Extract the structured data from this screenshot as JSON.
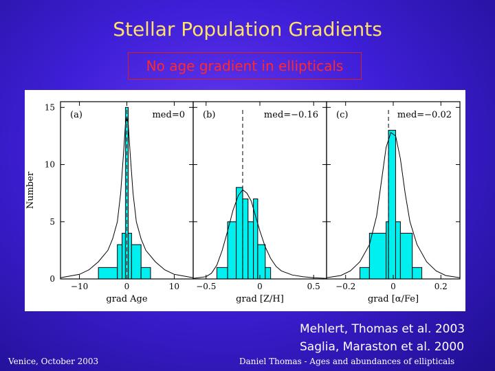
{
  "slide": {
    "title": "Stellar Population Gradients",
    "subtitle": "No age gradient in ellipticals",
    "references": [
      "Mehlert, Thomas et al. 2003",
      "Saglia, Maraston et al. 2000"
    ],
    "footer_left": "Venice, October 2003",
    "footer_center": "Daniel Thomas - Ages and abundances of ellipticals"
  },
  "colors": {
    "bars": "#00f0f0",
    "title": "#ffe06a",
    "subtitle": "#ff2a2a"
  },
  "chart_data": [
    {
      "type": "bar",
      "panel_label": "(a)",
      "annotation": "med=0",
      "xlabel": "grad Age",
      "ylabel": "Number",
      "xlim": [
        -14,
        14
      ],
      "ylim": [
        0,
        15.5
      ],
      "xticks": [
        -10,
        0,
        10
      ],
      "xtick_labels": [
        "−10",
        "0",
        "10"
      ],
      "yticks": [
        0,
        5,
        10,
        15
      ],
      "median": 0,
      "bins": [
        {
          "x0": -6,
          "x1": -2,
          "value": 1
        },
        {
          "x0": -2,
          "x1": -1,
          "value": 3
        },
        {
          "x0": -1,
          "x1": -0.3,
          "value": 4
        },
        {
          "x0": -0.3,
          "x1": 0.3,
          "value": 15
        },
        {
          "x0": 0.3,
          "x1": 1,
          "value": 4
        },
        {
          "x0": 1,
          "x1": 3,
          "value": 3
        },
        {
          "x0": 3,
          "x1": 5,
          "value": 1
        }
      ],
      "curve_points": [
        [
          -14,
          0.1
        ],
        [
          -10,
          0.4
        ],
        [
          -8,
          0.8
        ],
        [
          -6,
          1.5
        ],
        [
          -4,
          2.5
        ],
        [
          -3,
          3.5
        ],
        [
          -2,
          5
        ],
        [
          -1.3,
          7.5
        ],
        [
          -0.7,
          11
        ],
        [
          -0.3,
          13.5
        ],
        [
          0,
          14.2
        ],
        [
          0.3,
          13.5
        ],
        [
          0.7,
          11
        ],
        [
          1.3,
          7.5
        ],
        [
          2,
          5
        ],
        [
          3,
          3.5
        ],
        [
          4,
          2.5
        ],
        [
          6,
          1.5
        ],
        [
          8,
          0.8
        ],
        [
          10,
          0.4
        ],
        [
          14,
          0.1
        ]
      ]
    },
    {
      "type": "bar",
      "panel_label": "(b)",
      "annotation": "med=−0.16",
      "xlabel": "grad [Z/H]",
      "ylabel": "",
      "xlim": [
        -0.62,
        0.62
      ],
      "ylim": [
        0,
        15.5
      ],
      "xticks": [
        -0.5,
        0,
        0.5
      ],
      "xtick_labels": [
        "−0.5",
        "0",
        "0.5"
      ],
      "yticks": [
        0,
        5,
        10,
        15
      ],
      "median": -0.16,
      "bins": [
        {
          "x0": -0.4,
          "x1": -0.3,
          "value": 1
        },
        {
          "x0": -0.3,
          "x1": -0.22,
          "value": 5
        },
        {
          "x0": -0.22,
          "x1": -0.16,
          "value": 8
        },
        {
          "x0": -0.16,
          "x1": -0.11,
          "value": 7
        },
        {
          "x0": -0.11,
          "x1": -0.06,
          "value": 5
        },
        {
          "x0": -0.06,
          "x1": -0.02,
          "value": 7
        },
        {
          "x0": -0.02,
          "x1": 0.05,
          "value": 3
        },
        {
          "x0": 0.05,
          "x1": 0.1,
          "value": 1
        }
      ],
      "curve_points": [
        [
          -0.62,
          0.05
        ],
        [
          -0.5,
          0.2
        ],
        [
          -0.45,
          0.5
        ],
        [
          -0.4,
          1.2
        ],
        [
          -0.35,
          2.5
        ],
        [
          -0.3,
          4.2
        ],
        [
          -0.25,
          6.0
        ],
        [
          -0.2,
          7.3
        ],
        [
          -0.16,
          7.8
        ],
        [
          -0.12,
          7.5
        ],
        [
          -0.08,
          6.8
        ],
        [
          -0.04,
          5.5
        ],
        [
          0,
          4.2
        ],
        [
          0.05,
          2.8
        ],
        [
          0.1,
          1.8
        ],
        [
          0.15,
          1.1
        ],
        [
          0.2,
          0.7
        ],
        [
          0.3,
          0.35
        ],
        [
          0.4,
          0.2
        ],
        [
          0.5,
          0.1
        ],
        [
          0.62,
          0.05
        ]
      ]
    },
    {
      "type": "bar",
      "panel_label": "(c)",
      "annotation": "med=−0.02",
      "xlabel": "grad [α/Fe]",
      "ylabel": "",
      "xlim": [
        -0.28,
        0.28
      ],
      "ylim": [
        0,
        15.5
      ],
      "xticks": [
        -0.2,
        0,
        0.2
      ],
      "xtick_labels": [
        "−0.2",
        "0",
        "0.2"
      ],
      "yticks": [
        0,
        5,
        10,
        15
      ],
      "median": -0.02,
      "bins": [
        {
          "x0": -0.14,
          "x1": -0.1,
          "value": 1
        },
        {
          "x0": -0.1,
          "x1": -0.03,
          "value": 4
        },
        {
          "x0": -0.03,
          "x1": -0.02,
          "value": 5
        },
        {
          "x0": -0.02,
          "x1": 0.01,
          "value": 13
        },
        {
          "x0": 0.01,
          "x1": 0.03,
          "value": 5
        },
        {
          "x0": 0.03,
          "x1": 0.08,
          "value": 4
        },
        {
          "x0": 0.08,
          "x1": 0.12,
          "value": 1
        }
      ],
      "curve_points": [
        [
          -0.28,
          0.1
        ],
        [
          -0.22,
          0.3
        ],
        [
          -0.18,
          0.7
        ],
        [
          -0.14,
          1.5
        ],
        [
          -0.1,
          3.0
        ],
        [
          -0.07,
          5.5
        ],
        [
          -0.05,
          8.5
        ],
        [
          -0.03,
          11.5
        ],
        [
          -0.01,
          12.8
        ],
        [
          0.01,
          12.5
        ],
        [
          0.03,
          10.5
        ],
        [
          0.05,
          7.5
        ],
        [
          0.07,
          5.0
        ],
        [
          0.1,
          3.0
        ],
        [
          0.14,
          1.5
        ],
        [
          0.18,
          0.7
        ],
        [
          0.22,
          0.3
        ],
        [
          0.28,
          0.1
        ]
      ]
    }
  ]
}
